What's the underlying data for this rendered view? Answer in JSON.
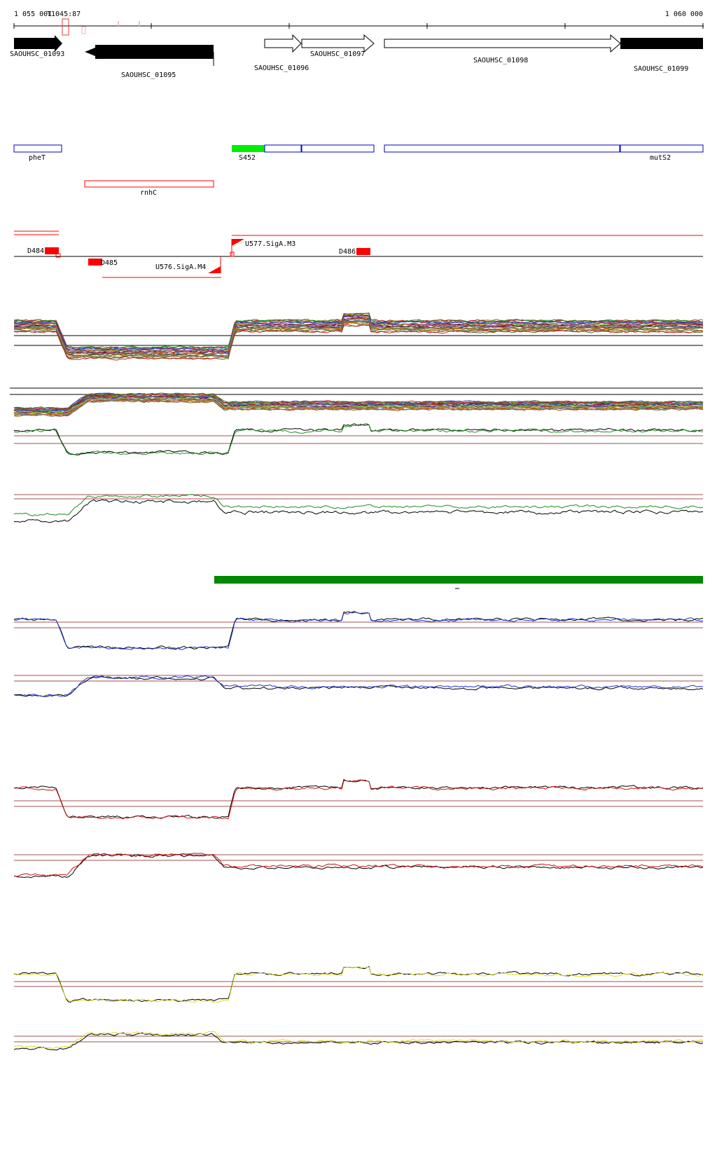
{
  "ruler": {
    "start_label": "1 055 001",
    "end_label": "1 060 000",
    "marker_label": "T1045:87"
  },
  "genes": [
    {
      "id": "g1093",
      "label": "SAOUHSC_01093",
      "strand": "+",
      "filled": true
    },
    {
      "id": "g1095",
      "label": "SAOUHSC_01095",
      "strand": "-",
      "filled": true
    },
    {
      "id": "g1096",
      "label": "SAOUHSC_01096",
      "strand": "+",
      "filled": false
    },
    {
      "id": "g1097",
      "label": "SAOUHSC_01097",
      "strand": "+",
      "filled": false
    },
    {
      "id": "g1098",
      "label": "SAOUHSC_01098",
      "strand": "+",
      "filled": false
    },
    {
      "id": "g1099",
      "label": "SAOUHSC_01099",
      "strand": "+",
      "filled": true
    }
  ],
  "annotations": {
    "blue_boxes": [
      "pheT",
      "mutS2"
    ],
    "green_box": "S452",
    "red_box": "rnhC"
  },
  "features": {
    "downstream": [
      "D484",
      "D485",
      "D486"
    ],
    "upstream": [
      "U577.SigA.M3",
      "U576.SigA.M4"
    ]
  },
  "colors": {
    "gene_fill": "#000000",
    "annotation_blue": "#0000cc",
    "annotation_red": "#ff0000",
    "annotation_green": "#00ee00",
    "green_bar": "#008800",
    "trace_green": "#228b22",
    "trace_blue": "#2233cc",
    "trace_red": "#cc1111",
    "trace_yellow": "#dddd22",
    "threshold": "#a05050"
  }
}
